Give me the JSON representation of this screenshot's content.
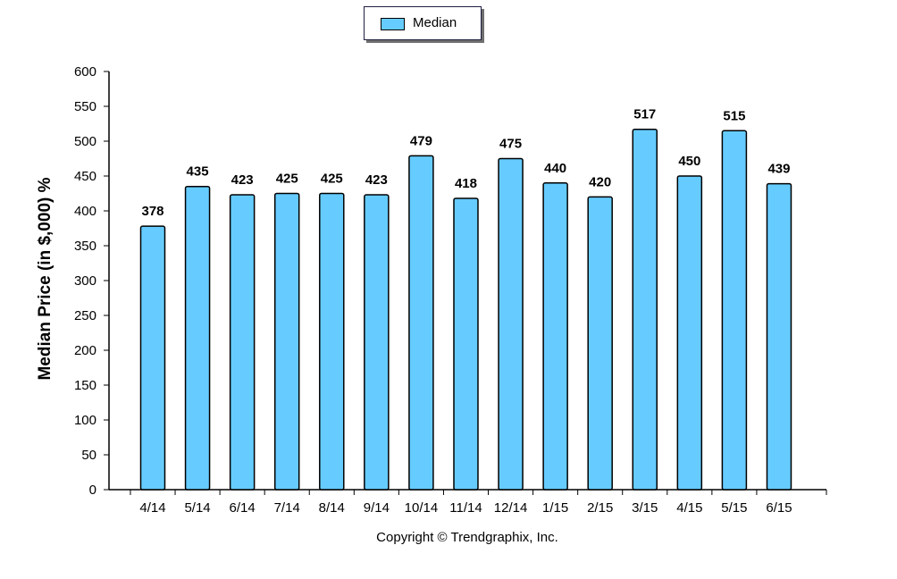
{
  "legend": {
    "label": "Median"
  },
  "footer": {
    "copyright": "Copyright © Trendgraphix, Inc."
  },
  "chart_data": {
    "type": "bar",
    "title": "",
    "xlabel": "",
    "ylabel": "Median Price (in $,000) %",
    "ylim": [
      0,
      600
    ],
    "yticks": [
      0,
      50,
      100,
      150,
      200,
      250,
      300,
      350,
      400,
      450,
      500,
      550,
      600
    ],
    "grid": false,
    "legend_position": "top-center",
    "bar_color": "#66ccff",
    "categories": [
      "4/14",
      "5/14",
      "6/14",
      "7/14",
      "8/14",
      "9/14",
      "10/14",
      "11/14",
      "12/14",
      "1/15",
      "2/15",
      "3/15",
      "4/15",
      "5/15",
      "6/15"
    ],
    "series": [
      {
        "name": "Median",
        "values": [
          378,
          435,
          423,
          425,
          425,
          423,
          479,
          418,
          475,
          440,
          420,
          517,
          450,
          515,
          439
        ]
      }
    ]
  }
}
